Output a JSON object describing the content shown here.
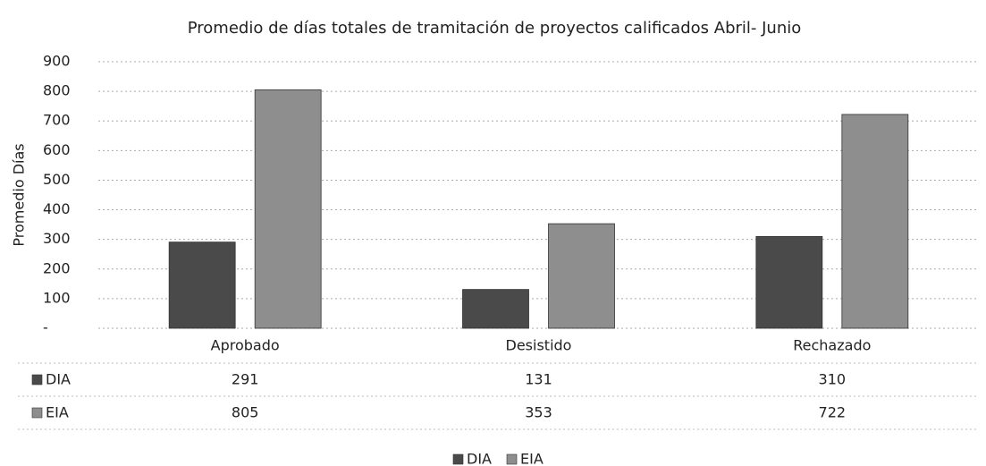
{
  "chart_data": {
    "type": "bar",
    "title": "Promedio de días totales de tramitación de proyectos calificados Abril- Junio",
    "y_label": "Promedio Días",
    "categories": [
      "Aprobado",
      "Desistido",
      "Rechazado"
    ],
    "series": [
      {
        "name": "DIA",
        "color": "#4a4a4a",
        "values": [
          291,
          131,
          310
        ]
      },
      {
        "name": "EIA",
        "color": "#8e8e8e",
        "values": [
          805,
          353,
          722
        ]
      }
    ],
    "ylim": [
      0,
      900
    ],
    "yticks": [
      {
        "value": 0,
        "label": "-"
      },
      100,
      200,
      300,
      400,
      500,
      600,
      700,
      800,
      900
    ],
    "grid": true,
    "legend": "bottom",
    "data_table": true
  }
}
